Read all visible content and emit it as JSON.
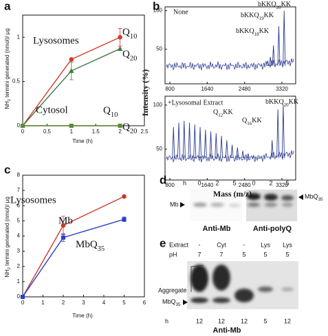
{
  "chart_data": [
    {
      "type": "line",
      "panel": "a",
      "y_label": "NH2 termini generated (nmol)/ µg",
      "x_label": "Time (h)",
      "x": [
        0,
        1,
        2
      ],
      "xlim": [
        0,
        2.5
      ],
      "xticks": [
        0,
        0.5,
        1,
        1.5,
        2,
        2.5
      ],
      "ylim": [
        0,
        1.25
      ],
      "yticks": [
        0,
        0.5,
        1
      ],
      "annotations": [
        "Lysosomes",
        "Cytosol"
      ],
      "series": [
        {
          "name": "Q10",
          "color": "#d63a2a",
          "marker": "circle",
          "values": [
            0,
            0.75,
            1.0
          ],
          "errors": [
            null,
            null,
            0.1
          ]
        },
        {
          "name": "Q20",
          "color": "#3d7a3d",
          "marker": "triangle",
          "values": [
            0,
            0.62,
            0.87
          ],
          "errors": [
            null,
            0.1,
            null
          ]
        },
        {
          "name": "Q10",
          "color": "#8b7a3a",
          "marker": "square",
          "values": [
            0,
            0,
            0
          ]
        },
        {
          "name": "Q20",
          "color": "#5e8a3a",
          "marker": "square",
          "values": [
            0,
            0,
            0
          ]
        }
      ]
    },
    {
      "type": "spectrum",
      "panel": "b",
      "y_label": "Intensity (%)",
      "color": "#2b3a8f",
      "xlim": [
        690,
        3630
      ],
      "xticks": [
        800,
        1640,
        2480,
        3320
      ],
      "ylim": [
        5,
        105
      ],
      "yticks": [
        50,
        100
      ],
      "annotations": [
        "None",
        "bKKQ20KK",
        "bKKQ19KK",
        "bKKQ18KK"
      ],
      "peaks": {
        "mass": [
          3000,
          3060,
          3130,
          3250,
          3370
        ],
        "intensity": [
          35,
          40,
          55,
          80,
          100
        ]
      }
    },
    {
      "type": "spectrum",
      "x_label": "Mass (m/z)",
      "color": "#2b3a8f",
      "xlim": [
        690,
        3630
      ],
      "xticks": [
        800,
        1640,
        2480,
        3320
      ],
      "ylim": [
        15,
        110
      ],
      "yticks": [
        50,
        100
      ],
      "annotations": [
        "+Lysosomal Extract",
        "Q12KK",
        "Q16KK",
        "bKKQ20KK"
      ],
      "peaks": {
        "mass": [
          880,
          1000,
          1120,
          1240,
          1360,
          1480,
          1600,
          1720,
          1840,
          1960,
          2080,
          2200,
          2320,
          2440,
          2560,
          2680,
          2800,
          3100,
          3230,
          3350
        ],
        "intensity": [
          75,
          80,
          82,
          80,
          78,
          75,
          72,
          70,
          68,
          65,
          60,
          55,
          52,
          48,
          45,
          42,
          40,
          60,
          95,
          100
        ]
      }
    },
    {
      "type": "line",
      "panel": "c",
      "y_label": "NH2 termini generated (nmol)/ µg",
      "x_label": "Time (h)",
      "x": [
        0,
        2,
        5
      ],
      "xlim": [
        0,
        6
      ],
      "xticks": [
        0,
        1,
        2,
        3,
        4,
        5,
        6
      ],
      "ylim": [
        0,
        8
      ],
      "yticks": [
        0,
        1,
        2,
        3,
        4,
        5,
        6,
        7,
        8
      ],
      "annotations": [
        "Lysosomes"
      ],
      "series": [
        {
          "name": "Mb",
          "color": "#c8392b",
          "marker": "circle",
          "values": [
            0,
            4.7,
            6.6
          ],
          "errors": [
            null,
            0.6,
            null
          ]
        },
        {
          "name": "MbQ35",
          "color": "#2a3fc8",
          "marker": "square",
          "values": [
            0,
            3.9,
            5.1
          ],
          "errors": [
            null,
            0.25,
            0.15
          ]
        }
      ]
    }
  ],
  "gels": [
    {
      "panel": "d",
      "row_label": "h",
      "lanes": [
        0,
        2,
        5,
        0,
        2,
        5
      ],
      "band_labels": [
        "Mb",
        "MbQ35"
      ],
      "antibodies": [
        "Anti-Mb",
        "Anti-polyQ"
      ]
    },
    {
      "panel": "e",
      "row_labels": [
        "Extract",
        "pH"
      ],
      "extract": [
        "-",
        "Cyt",
        "-",
        "Lys",
        "Lys"
      ],
      "pH": [
        7,
        7,
        5,
        5,
        5
      ],
      "band_labels": [
        "Aggregate",
        "MbQ35"
      ],
      "time_label": "h",
      "time": [
        12,
        12,
        12,
        5,
        12
      ],
      "antibody": "Anti-Mb"
    }
  ]
}
